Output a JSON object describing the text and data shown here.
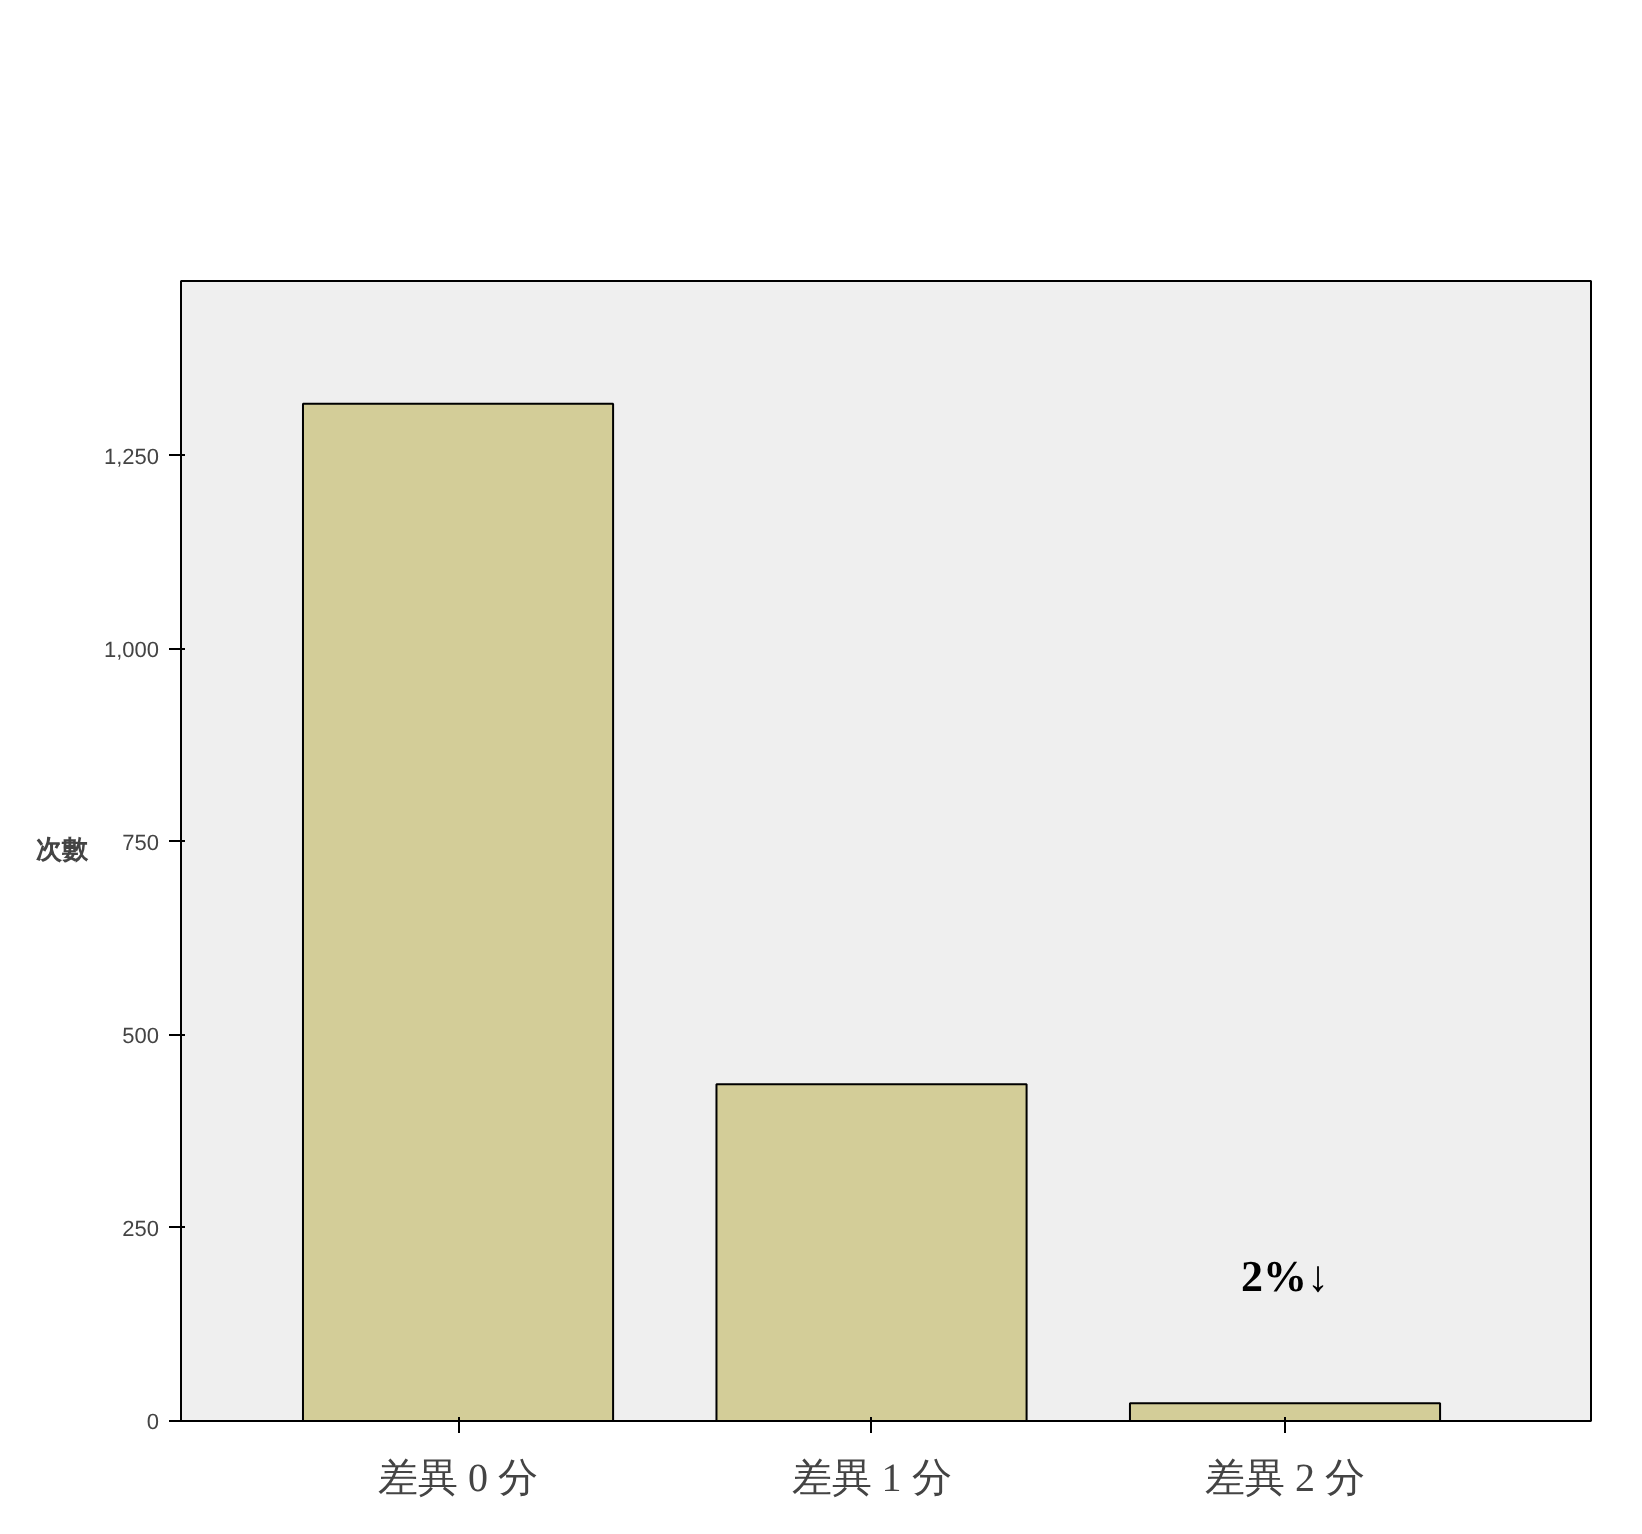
{
  "chart_data": {
    "type": "bar",
    "ylabel": "次數",
    "categories": [
      "差異 0 分",
      "差異 1 分",
      "差異 2 分"
    ],
    "values": [
      1317,
      436,
      23
    ],
    "color": "#d3cd98",
    "ylim": [
      0,
      1476
    ],
    "yticks": [
      0,
      250,
      500,
      750,
      {
        "value": 1000,
        "label": "1,000"
      },
      {
        "value": 1250,
        "label": "1,250"
      }
    ],
    "grid": false,
    "annotations": [
      "2%↓"
    ]
  }
}
